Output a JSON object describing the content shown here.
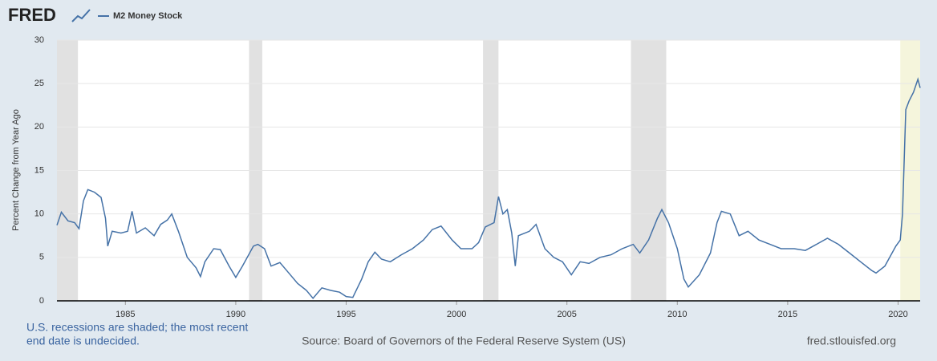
{
  "brand": "FRED",
  "chart_data": {
    "type": "line",
    "series": [
      {
        "name": "M2 Money Stock",
        "color": "#4572a7",
        "x": [
          1981.9,
          1982.1,
          1982.4,
          1982.7,
          1982.9,
          1983.1,
          1983.3,
          1983.6,
          1983.9,
          1984.1,
          1984.2,
          1984.4,
          1984.8,
          1985.1,
          1985.3,
          1985.5,
          1985.9,
          1986.3,
          1986.6,
          1986.9,
          1987.1,
          1987.4,
          1987.8,
          1988.2,
          1988.4,
          1988.6,
          1989.0,
          1989.3,
          1989.7,
          1990.0,
          1990.3,
          1990.8,
          1991.0,
          1991.3,
          1991.6,
          1992.0,
          1992.4,
          1992.8,
          1993.2,
          1993.5,
          1993.9,
          1994.3,
          1994.7,
          1995.0,
          1995.3,
          1995.7,
          1996.0,
          1996.3,
          1996.6,
          1997.0,
          1997.5,
          1998.0,
          1998.5,
          1998.9,
          1999.3,
          1999.8,
          2000.2,
          2000.7,
          2001.0,
          2001.3,
          2001.7,
          2001.9,
          2002.1,
          2002.3,
          2002.5,
          2002.66,
          2002.8,
          2003.3,
          2003.6,
          2004.0,
          2004.4,
          2004.8,
          2005.2,
          2005.6,
          2006.0,
          2006.5,
          2007.0,
          2007.5,
          2008.0,
          2008.3,
          2008.7,
          2009.1,
          2009.3,
          2009.6,
          2010.0,
          2010.3,
          2010.5,
          2011.0,
          2011.5,
          2011.8,
          2012.0,
          2012.4,
          2012.8,
          2013.2,
          2013.7,
          2014.2,
          2014.7,
          2015.3,
          2015.8,
          2016.3,
          2016.8,
          2017.3,
          2017.8,
          2018.3,
          2018.8,
          2019.0,
          2019.4,
          2019.9,
          2020.1,
          2020.2,
          2020.35,
          2020.5,
          2020.7,
          2020.9,
          2021.0
        ],
        "values": [
          8.7,
          10.2,
          9.2,
          9.0,
          8.3,
          11.5,
          12.8,
          12.5,
          11.9,
          9.5,
          6.3,
          8.0,
          7.8,
          8.0,
          10.3,
          7.8,
          8.4,
          7.5,
          8.8,
          9.3,
          10.0,
          8.0,
          5.0,
          3.8,
          2.8,
          4.5,
          6.0,
          5.9,
          4.0,
          2.7,
          4.0,
          6.3,
          6.5,
          6.0,
          4.0,
          4.4,
          3.2,
          2.0,
          1.2,
          0.3,
          1.5,
          1.2,
          1.0,
          0.5,
          0.4,
          2.5,
          4.5,
          5.6,
          4.8,
          4.5,
          5.3,
          6.0,
          7.0,
          8.2,
          8.6,
          7.0,
          6.0,
          6.0,
          6.7,
          8.5,
          9.0,
          12.0,
          10.0,
          10.5,
          7.8,
          4.0,
          7.5,
          8.0,
          8.8,
          6.0,
          5.0,
          4.5,
          3.0,
          4.5,
          4.3,
          5.0,
          5.3,
          6.0,
          6.5,
          5.5,
          7.0,
          9.5,
          10.5,
          9.0,
          6.0,
          2.5,
          1.6,
          3.0,
          5.5,
          9.0,
          10.3,
          10.0,
          7.5,
          8.0,
          7.0,
          6.5,
          6.0,
          6.0,
          5.8,
          6.5,
          7.2,
          6.5,
          5.5,
          4.5,
          3.5,
          3.2,
          4.0,
          6.3,
          7.0,
          10,
          22.0,
          23,
          24,
          25.5,
          24.5
        ]
      }
    ],
    "recessions": [
      [
        1981.9,
        1982.85
      ],
      [
        1990.6,
        1991.2
      ],
      [
        2001.2,
        2001.9
      ],
      [
        2007.9,
        2009.5
      ],
      [
        2020.1,
        null
      ]
    ],
    "recession_color": "#e1e1e1",
    "current_recession_color": "#f5f5dc",
    "y_label": "Percent Change from Year Ago",
    "xlim": [
      1981.9,
      2021.0
    ],
    "xticks": [
      1985,
      1990,
      1995,
      2000,
      2005,
      2010,
      2015,
      2020
    ],
    "ylim": [
      0,
      30
    ],
    "yticks": [
      0,
      5,
      10,
      15,
      20,
      25,
      30
    ],
    "grid": true
  },
  "footer": {
    "note": [
      "U.S. recessions are shaded; the most recent",
      "end date is undecided."
    ],
    "source": "Source: Board of Governors of the Federal Reserve System (US)",
    "site": "fred.stlouisfed.org"
  }
}
